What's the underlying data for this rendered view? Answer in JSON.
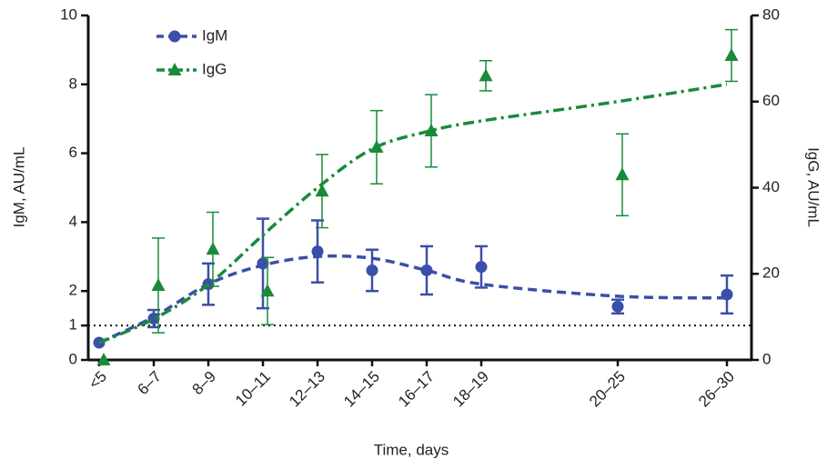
{
  "chart_data": {
    "type": "line",
    "x_label": "Time, days",
    "y_label": "IgM, AU/mL",
    "y2_label": "IgG, AU/mL",
    "x": [
      4.5,
      6.5,
      8.5,
      10.5,
      12.5,
      14.5,
      16.5,
      18.5,
      23.5,
      27.5
    ],
    "xlim": [
      4.1,
      28.4
    ],
    "xticks": [
      {
        "value": 4.5,
        "label": "<5"
      },
      {
        "value": 6.5,
        "label": "6–7"
      },
      {
        "value": 8.5,
        "label": "8–9"
      },
      {
        "value": 10.5,
        "label": "10–11"
      },
      {
        "value": 12.5,
        "label": "12–13"
      },
      {
        "value": 14.5,
        "label": "14–15"
      },
      {
        "value": 16.5,
        "label": "16–17"
      },
      {
        "value": 18.5,
        "label": "18–19"
      },
      {
        "value": 23.5,
        "label": "20–25"
      },
      {
        "value": 27.5,
        "label": "26–30"
      }
    ],
    "ylim": [
      0,
      10
    ],
    "yticks": [
      0,
      1,
      2,
      4,
      6,
      8,
      10
    ],
    "y2lim": [
      0,
      80
    ],
    "y2ticks": [
      0,
      20,
      40,
      60,
      80
    ],
    "reference_line": 1,
    "series": [
      {
        "name": "IgM",
        "color": "#3a4fa8",
        "marker": "circle",
        "dash": "10,6",
        "values": [
          0.5,
          1.2,
          2.2,
          2.8,
          3.15,
          2.6,
          2.6,
          2.7,
          1.55,
          1.9
        ],
        "errors": [
          null,
          0.25,
          0.6,
          1.3,
          0.9,
          0.6,
          0.7,
          0.6,
          0.2,
          0.55
        ],
        "trend": [
          0.5,
          1.25,
          2.2,
          2.75,
          3.0,
          2.95,
          2.6,
          2.2,
          1.85,
          1.8
        ]
      },
      {
        "name": "IgG",
        "color": "#1a8a3a",
        "marker": "triangle",
        "axis": "y2",
        "dash": "12,5,3,5",
        "values": [
          0,
          17.3,
          25.7,
          16,
          39.2,
          49.4,
          53.2,
          66,
          43,
          70.7
        ],
        "errors": [
          null,
          11,
          8.6,
          7.8,
          8.5,
          8.5,
          8.4,
          3.5,
          9.5,
          6
        ],
        "trend": [
          4,
          9.5,
          17.5,
          29,
          40,
          49,
          53,
          55.5,
          60,
          64
        ]
      }
    ]
  }
}
